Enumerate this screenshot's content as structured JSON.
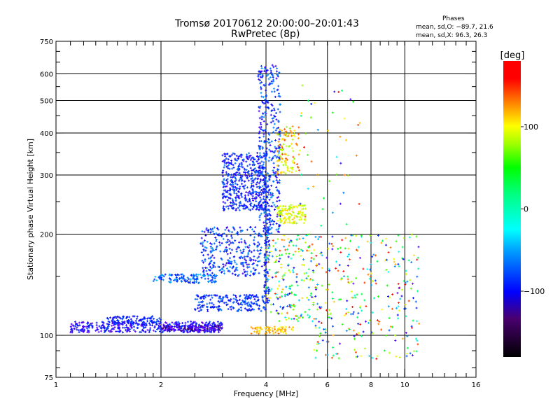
{
  "chart_data": {
    "type": "scatter",
    "title": "Tromsø 20170612 20:00:00–20:01:43",
    "subtitle": "RwPretec (8p)",
    "info": {
      "heading": "Phases",
      "line_o": "mean, sd,O: −89.7, 21.6",
      "line_x": "mean, sd,X:  96.3, 26.3"
    },
    "xlabel": "Frequency [MHz]",
    "ylabel": "Stationary phase Virtual Height [km]",
    "xscale": "log",
    "yscale": "log",
    "xlim": [
      1,
      16
    ],
    "ylim": [
      75,
      750
    ],
    "xticks": [
      1,
      2,
      4,
      6,
      8,
      10,
      16
    ],
    "xtick_labels": [
      "1",
      "2",
      "4",
      "6",
      "8",
      "10",
      "16"
    ],
    "yticks": [
      75,
      100,
      200,
      300,
      400,
      500,
      600,
      750
    ],
    "ytick_labels": [
      "75",
      "100",
      "200",
      "300",
      "400",
      "500",
      "600",
      "750"
    ],
    "xgrid": [
      2,
      4,
      6,
      8,
      10
    ],
    "ygrid": [
      100,
      200,
      300,
      400,
      500,
      600
    ],
    "colorbar": {
      "label": "[deg]",
      "range": [
        -180,
        180
      ],
      "ticks": [
        100,
        0,
        -100
      ],
      "tick_labels": [
        "100",
        "0",
        "−100"
      ]
    },
    "point_clusters": [
      {
        "f": [
          1.1,
          3.0
        ],
        "h": [
          102,
          110
        ],
        "phase": [
          -130,
          -80
        ],
        "n": 420
      },
      {
        "f": [
          1.4,
          2.0
        ],
        "h": [
          108,
          114
        ],
        "phase": [
          -110,
          -80
        ],
        "n": 90
      },
      {
        "f": [
          2.0,
          3.0
        ],
        "h": [
          103,
          107
        ],
        "phase": [
          -150,
          -100
        ],
        "n": 120
      },
      {
        "f": [
          2.5,
          4.0
        ],
        "h": [
          118,
          132
        ],
        "phase": [
          -110,
          -70
        ],
        "n": 200
      },
      {
        "f": [
          1.9,
          2.9
        ],
        "h": [
          143,
          152
        ],
        "phase": [
          -100,
          -50
        ],
        "n": 120
      },
      {
        "f": [
          2.6,
          3.9
        ],
        "h": [
          150,
          210
        ],
        "phase": [
          -120,
          -60
        ],
        "n": 300
      },
      {
        "f": [
          3.0,
          4.0
        ],
        "h": [
          235,
          350
        ],
        "phase": [
          -120,
          -70
        ],
        "n": 450
      },
      {
        "f": [
          3.8,
          4.4
        ],
        "h": [
          200,
          640
        ],
        "phase": [
          -120,
          -60
        ],
        "n": 380
      },
      {
        "f": [
          3.95,
          4.1
        ],
        "h": [
          125,
          300
        ],
        "phase": [
          -110,
          -70
        ],
        "n": 120
      },
      {
        "f": [
          4.3,
          5.0
        ],
        "h": [
          300,
          420
        ],
        "phase": [
          60,
          150
        ],
        "n": 110
      },
      {
        "f": [
          4.3,
          5.2
        ],
        "h": [
          215,
          245
        ],
        "phase": [
          60,
          110
        ],
        "n": 120
      },
      {
        "f": [
          3.6,
          4.8
        ],
        "h": [
          101,
          106
        ],
        "phase": [
          90,
          130
        ],
        "n": 70
      },
      {
        "f": [
          4.0,
          5.5
        ],
        "h": [
          110,
          200
        ],
        "phase": [
          -120,
          150
        ],
        "n": 200
      },
      {
        "f": [
          5.5,
          11.0
        ],
        "h": [
          85,
          200
        ],
        "phase": [
          -130,
          170
        ],
        "n": 300
      },
      {
        "f": [
          5.0,
          7.5
        ],
        "h": [
          200,
          620
        ],
        "phase": [
          -120,
          170
        ],
        "n": 45
      }
    ]
  }
}
